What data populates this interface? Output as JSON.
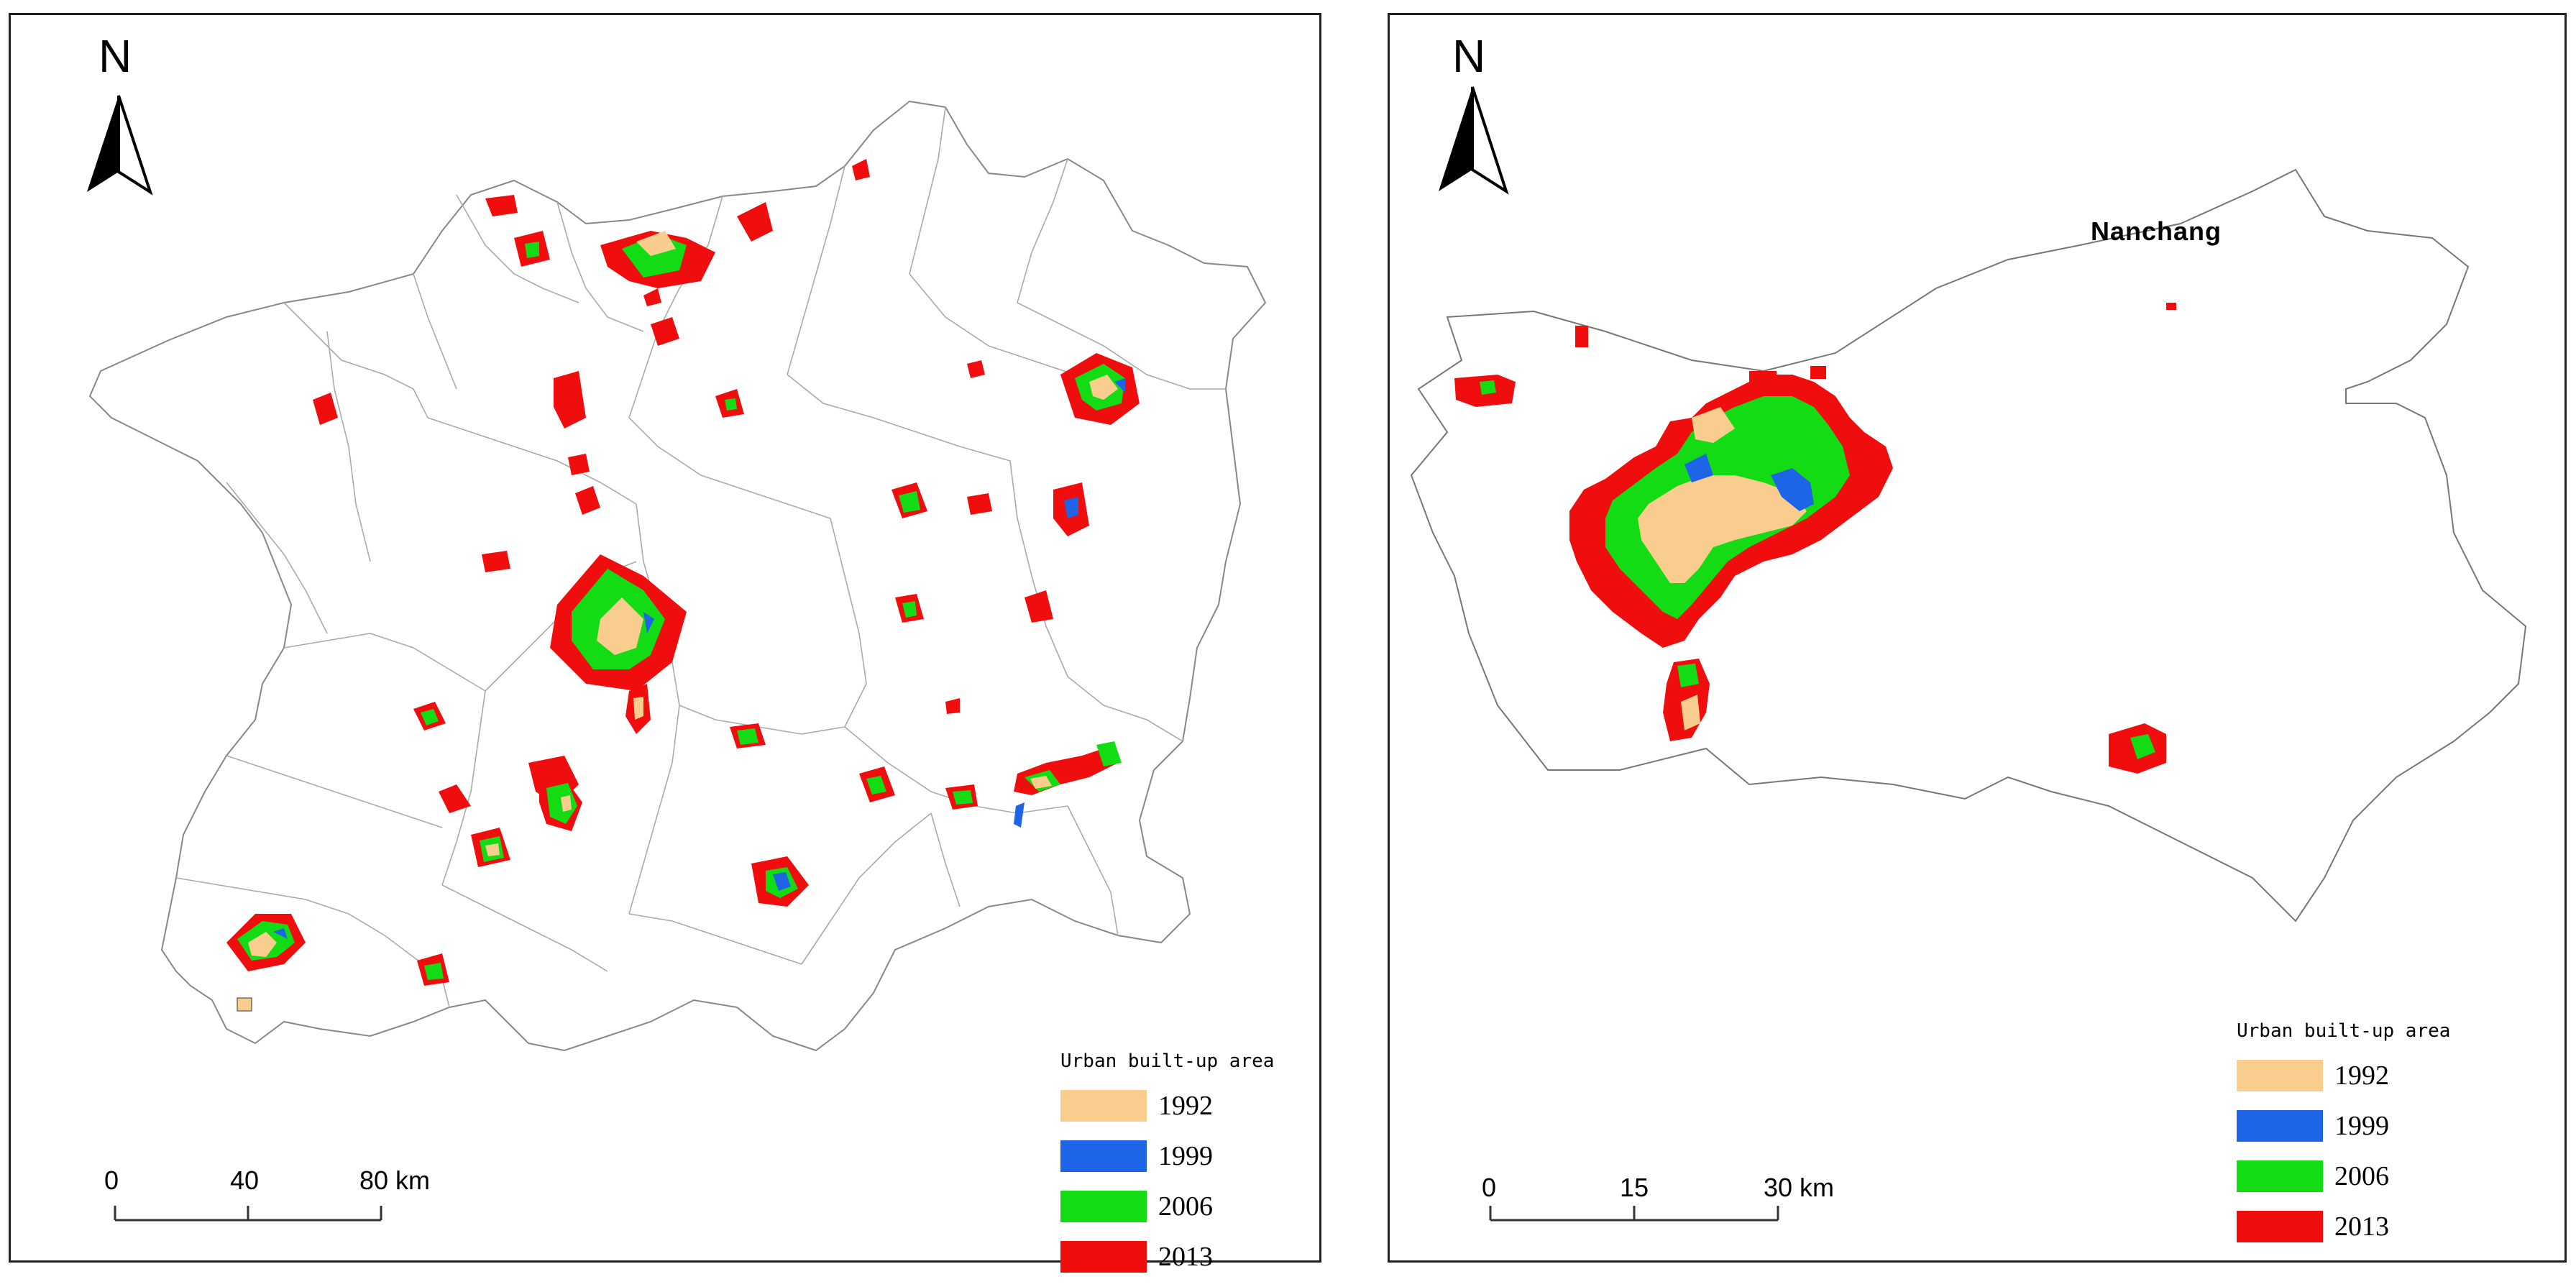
{
  "left_map": {
    "north": "N",
    "legend": {
      "title": "Urban built-up area",
      "items": [
        {
          "label": "1992",
          "color": "#f9cd8d"
        },
        {
          "label": "1999",
          "color": "#1e64e6"
        },
        {
          "label": "2006",
          "color": "#14dc14"
        },
        {
          "label": "2013",
          "color": "#f00d0d"
        }
      ]
    },
    "scale": {
      "labels": [
        "0",
        "40",
        "80 km"
      ]
    }
  },
  "right_map": {
    "north": "N",
    "city": "Nanchang",
    "legend": {
      "title": "Urban built-up area",
      "items": [
        {
          "label": "1992",
          "color": "#f9cd8d"
        },
        {
          "label": "1999",
          "color": "#1e64e6"
        },
        {
          "label": "2006",
          "color": "#14dc14"
        },
        {
          "label": "2013",
          "color": "#f00d0d"
        }
      ]
    },
    "scale": {
      "labels": [
        "0",
        "15",
        "30 km"
      ]
    }
  }
}
